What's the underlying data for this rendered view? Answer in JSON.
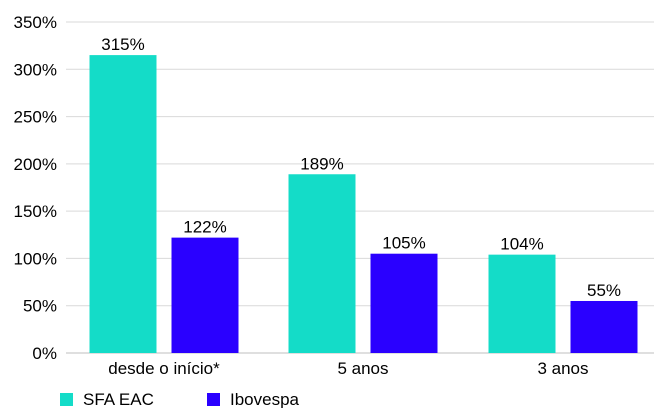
{
  "chart_data": {
    "type": "bar",
    "categories": [
      "desde o início*",
      "5 anos",
      "3 anos"
    ],
    "series": [
      {
        "name": "SFA EAC",
        "values": [
          315,
          189,
          104
        ],
        "color": "#14dcc8",
        "labels": [
          "315%",
          "189%",
          "104%"
        ]
      },
      {
        "name": "Ibovespa",
        "values": [
          122,
          105,
          55
        ],
        "color": "#2a00ff",
        "labels": [
          "122%",
          "105%",
          "55%"
        ]
      }
    ],
    "title": "",
    "xlabel": "",
    "ylabel": "",
    "ylim": [
      0,
      350
    ],
    "yticks": [
      0,
      50,
      100,
      150,
      200,
      250,
      300,
      350
    ],
    "ytick_labels": [
      "0%",
      "50%",
      "100%",
      "150%",
      "200%",
      "250%",
      "300%",
      "350%"
    ],
    "grid": true,
    "legend_position": "bottom-left"
  }
}
